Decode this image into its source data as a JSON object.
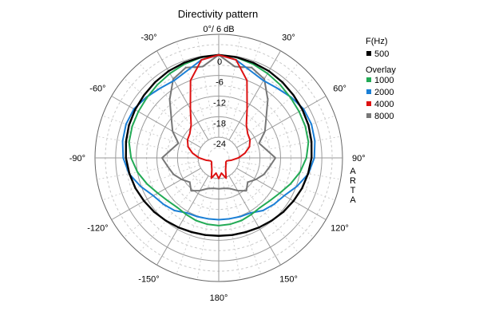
{
  "chart_data": {
    "type": "polar",
    "title": "Directivity pattern",
    "top_label": "0°/ 6 dB",
    "watermark": "ARTA",
    "radial_ticks": [
      "0",
      "-6",
      "-12",
      "-18",
      "-24"
    ],
    "radial_range": [
      -30,
      6
    ],
    "angle_labels": [
      {
        "angle": -30,
        "text": "-30°"
      },
      {
        "angle": 30,
        "text": "30°"
      },
      {
        "angle": -60,
        "text": "-60°"
      },
      {
        "angle": 60,
        "text": "60°"
      },
      {
        "angle": -90,
        "text": "-90°"
      },
      {
        "angle": 90,
        "text": "90°"
      },
      {
        "angle": -120,
        "text": "-120°"
      },
      {
        "angle": 120,
        "text": "120°"
      },
      {
        "angle": -150,
        "text": "-150°"
      },
      {
        "angle": 150,
        "text": "150°"
      },
      {
        "angle": 180,
        "text": "180°"
      }
    ],
    "legend": {
      "header": "F(Hz)",
      "overlay_header": "Overlay",
      "placement": "right"
    },
    "angles_deg": [
      0,
      10,
      20,
      30,
      40,
      50,
      60,
      70,
      80,
      90,
      100,
      110,
      120,
      130,
      140,
      150,
      160,
      170,
      180
    ],
    "series": [
      {
        "name": "500",
        "color": "#000000",
        "group": "main",
        "values": [
          0,
          -0.2,
          -0.5,
          -0.8,
          -1.2,
          -1.6,
          -1.9,
          -2.2,
          -2.6,
          -3,
          -3.6,
          -4.2,
          -4.9,
          -5.5,
          -6.1,
          -6.6,
          -7.0,
          -7.2,
          -7.3
        ]
      },
      {
        "name": "1000",
        "color": "#22aa55",
        "group": "overlay",
        "values": [
          0,
          -0.3,
          -0.9,
          -1.6,
          -2.2,
          -2.7,
          -3.0,
          -3.2,
          -3.5,
          -4.5,
          -6.0,
          -7.8,
          -9.5,
          -10.6,
          -11.2,
          -11.0,
          -10.6,
          -10.4,
          -10.3
        ]
      },
      {
        "name": "2000",
        "color": "#1a7fd6",
        "group": "overlay",
        "values": [
          0,
          -1,
          -3,
          -4,
          -3.5,
          -2.5,
          -1.5,
          -1.3,
          -1.6,
          -2.2,
          -3.5,
          -5.8,
          -8.0,
          -9.0,
          -10,
          -11.5,
          -11.8,
          -12.0,
          -12.0
        ]
      },
      {
        "name": "4000",
        "color": "#dd1111",
        "group": "overlay",
        "values": [
          0,
          -1,
          -6.0,
          -13.5,
          -17.5,
          -19.0,
          -19.5,
          -20.5,
          -22.3,
          -24.3,
          -26.2,
          -27.5,
          -27.6,
          -27.3,
          -26.8,
          -26.0,
          -23.7,
          -25.5,
          -24.0
        ]
      },
      {
        "name": "8000",
        "color": "#777777",
        "group": "overlay",
        "values": [
          0,
          -3,
          -2.0,
          -3.5,
          -7.8,
          -12,
          -14.5,
          -17.5,
          -16,
          -13.5,
          -15.0,
          -16.0,
          -17.5,
          -19,
          -17.5,
          -19,
          -20.5,
          -21,
          -21
        ]
      }
    ]
  }
}
